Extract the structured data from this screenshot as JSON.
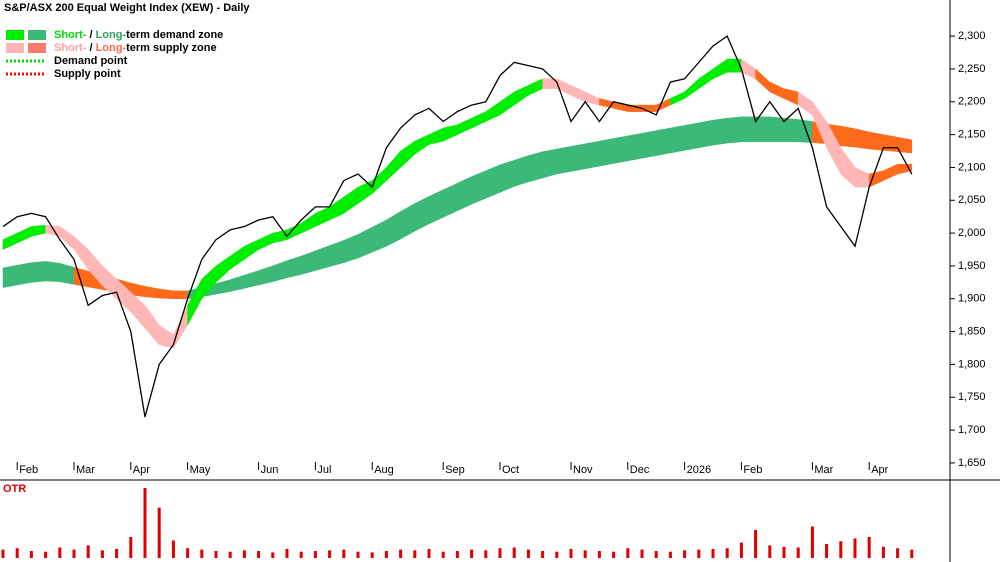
{
  "chart_data": {
    "type": "line",
    "title": "S&P/ASX 200 Equal Weight Index (XEW) - Daily",
    "categories": [
      null,
      "Feb",
      null,
      null,
      null,
      "Mar",
      null,
      null,
      null,
      "Apr",
      null,
      null,
      null,
      "May",
      null,
      null,
      null,
      null,
      "Jun",
      null,
      null,
      null,
      "Jul",
      null,
      null,
      null,
      "Aug",
      null,
      null,
      null,
      null,
      "Sep",
      null,
      null,
      null,
      "Oct",
      null,
      null,
      null,
      null,
      "Nov",
      null,
      null,
      null,
      "Dec",
      null,
      null,
      null,
      "2026",
      null,
      null,
      null,
      "Feb",
      null,
      null,
      null,
      null,
      "Mar",
      null,
      null,
      null,
      "Apr",
      null,
      null,
      null
    ],
    "series": [
      {
        "name": "XEW",
        "color": "#000000",
        "values": [
          2010,
          2025,
          2030,
          2025,
          1990,
          1960,
          1890,
          1905,
          1910,
          1850,
          1720,
          1800,
          1830,
          1900,
          1960,
          1990,
          2005,
          2010,
          2020,
          2025,
          1995,
          2020,
          2040,
          2040,
          2080,
          2090,
          2070,
          2130,
          2160,
          2180,
          2190,
          2170,
          2185,
          2195,
          2200,
          2240,
          2260,
          2255,
          2250,
          2230,
          2170,
          2200,
          2170,
          2200,
          2195,
          2190,
          2180,
          2230,
          2235,
          2260,
          2285,
          2300,
          2250,
          2170,
          2200,
          2170,
          2190,
          2130,
          2040,
          2010,
          1980,
          2070,
          2130,
          2130,
          2090
        ]
      }
    ],
    "bands": [
      {
        "upper": [
          1947,
          1951,
          1955,
          1957,
          1954,
          1948,
          1942,
          1936,
          1930,
          1924,
          1919,
          1915,
          1912,
          1912,
          1917,
          1923,
          1929,
          1936,
          1943,
          1950,
          1958,
          1965,
          1973,
          1981,
          1989,
          1998,
          2009,
          2020,
          2033,
          2045,
          2056,
          2066,
          2076,
          2086,
          2095,
          2104,
          2111,
          2118,
          2124,
          2128,
          2132,
          2136,
          2140,
          2144,
          2148,
          2152,
          2156,
          2160,
          2164,
          2168,
          2172,
          2175,
          2177,
          2177,
          2177,
          2175,
          2173,
          2170,
          2166,
          2163,
          2159,
          2154,
          2150,
          2146,
          2142
        ],
        "lower": [
          1917,
          1921,
          1925,
          1927,
          1926,
          1922,
          1918,
          1914,
          1910,
          1906,
          1903,
          1901,
          1900,
          1900,
          1903,
          1907,
          1911,
          1916,
          1921,
          1926,
          1932,
          1937,
          1943,
          1949,
          1955,
          1962,
          1971,
          1980,
          1991,
          2003,
          2014,
          2024,
          2034,
          2044,
          2053,
          2062,
          2071,
          2078,
          2084,
          2090,
          2094,
          2098,
          2102,
          2106,
          2110,
          2114,
          2118,
          2122,
          2126,
          2130,
          2134,
          2137,
          2139,
          2139,
          2139,
          2139,
          2139,
          2138,
          2136,
          2133,
          2131,
          2128,
          2126,
          2124,
          2122
        ],
        "colors": [
          "#3cb878",
          "#3cb878",
          "#3cb878",
          "#3cb878",
          "#3cb878",
          "#ff6a1a",
          "#ff6a1a",
          "#ff6a1a",
          "#ff6a1a",
          "#ff6a1a",
          "#ff6a1a",
          "#ff6a1a",
          "#ff6a1a",
          "#3cb878",
          "#3cb878",
          "#3cb878",
          "#3cb878",
          "#3cb878",
          "#3cb878",
          "#3cb878",
          "#3cb878",
          "#3cb878",
          "#3cb878",
          "#3cb878",
          "#3cb878",
          "#3cb878",
          "#3cb878",
          "#3cb878",
          "#3cb878",
          "#3cb878",
          "#3cb878",
          "#3cb878",
          "#3cb878",
          "#3cb878",
          "#3cb878",
          "#3cb878",
          "#3cb878",
          "#3cb878",
          "#3cb878",
          "#3cb878",
          "#3cb878",
          "#3cb878",
          "#3cb878",
          "#3cb878",
          "#3cb878",
          "#3cb878",
          "#3cb878",
          "#3cb878",
          "#3cb878",
          "#3cb878",
          "#3cb878",
          "#3cb878",
          "#3cb878",
          "#3cb878",
          "#3cb878",
          "#3cb878",
          "#3cb878",
          "#ff6a1a",
          "#ff6a1a",
          "#ff6a1a",
          "#ff6a1a",
          "#ff6a1a",
          "#ff6a1a",
          "#ff6a1a",
          "#ff6a1a"
        ]
      },
      {
        "upper": [
          1990,
          2000,
          2010,
          2012,
          2010,
          1995,
          1975,
          1950,
          1930,
          1910,
          1890,
          1860,
          1845,
          1890,
          1930,
          1950,
          1965,
          1980,
          1990,
          2000,
          2005,
          2015,
          2030,
          2040,
          2055,
          2070,
          2080,
          2100,
          2125,
          2140,
          2150,
          2160,
          2165,
          2175,
          2185,
          2200,
          2215,
          2225,
          2235,
          2235,
          2225,
          2215,
          2205,
          2200,
          2195,
          2195,
          2195,
          2205,
          2215,
          2235,
          2250,
          2265,
          2265,
          2250,
          2230,
          2220,
          2215,
          2200,
          2170,
          2130,
          2100,
          2090,
          2095,
          2105,
          2105
        ],
        "lower": [
          1975,
          1985,
          1995,
          2000,
          1995,
          1975,
          1945,
          1920,
          1900,
          1880,
          1855,
          1830,
          1825,
          1860,
          1900,
          1925,
          1945,
          1960,
          1975,
          1985,
          1990,
          2000,
          2010,
          2020,
          2030,
          2045,
          2060,
          2080,
          2100,
          2120,
          2135,
          2140,
          2150,
          2160,
          2170,
          2180,
          2195,
          2210,
          2220,
          2220,
          2210,
          2200,
          2195,
          2190,
          2185,
          2185,
          2185,
          2195,
          2205,
          2220,
          2235,
          2245,
          2245,
          2235,
          2215,
          2205,
          2195,
          2180,
          2130,
          2090,
          2070,
          2070,
          2080,
          2090,
          2095
        ],
        "colors": [
          "#00ee00",
          "#00ee00",
          "#00ee00",
          "#ffb6b6",
          "#ffb6b6",
          "#ffb6b6",
          "#ffb6b6",
          "#ffb6b6",
          "#ffb6b6",
          "#ffb6b6",
          "#ffb6b6",
          "#ffb6b6",
          "#ffb6b6",
          "#00ee00",
          "#00ee00",
          "#00ee00",
          "#00ee00",
          "#00ee00",
          "#00ee00",
          "#00ee00",
          "#00ee00",
          "#00ee00",
          "#00ee00",
          "#00ee00",
          "#00ee00",
          "#00ee00",
          "#00ee00",
          "#00ee00",
          "#00ee00",
          "#00ee00",
          "#00ee00",
          "#00ee00",
          "#00ee00",
          "#00ee00",
          "#00ee00",
          "#00ee00",
          "#00ee00",
          "#00ee00",
          "#ffb6b6",
          "#ffb6b6",
          "#ffb6b6",
          "#ffb6b6",
          "#ff6a1a",
          "#ff6a1a",
          "#ff6a1a",
          "#ff6a1a",
          "#ff6a1a",
          "#00ee00",
          "#00ee00",
          "#00ee00",
          "#00ee00",
          "#00ee00",
          "#ffb6b6",
          "#ff6a1a",
          "#ff6a1a",
          "#ff6a1a",
          "#ffb6b6",
          "#ffb6b6",
          "#ffb6b6",
          "#ffb6b6",
          "#ffb6b6",
          "#ff6a1a",
          "#ff6a1a",
          "#ff6a1a",
          "#ff6a1a"
        ]
      }
    ],
    "ylim": [
      1624,
      2355
    ],
    "yticks": [
      {
        "value": 1650,
        "label": "1,650"
      },
      {
        "value": 1700,
        "label": "1,700"
      },
      {
        "value": 1750,
        "label": "1,750"
      },
      {
        "value": 1800,
        "label": "1,800"
      },
      {
        "value": 1850,
        "label": "1,850"
      },
      {
        "value": 1900,
        "label": "1,900"
      },
      {
        "value": 1950,
        "label": "1,950"
      },
      {
        "value": 2000,
        "label": "2,000"
      },
      {
        "value": 2050,
        "label": "2,050"
      },
      {
        "value": 2100,
        "label": "2,100"
      },
      {
        "value": 2150,
        "label": "2,150"
      },
      {
        "value": 2200,
        "label": "2,200"
      },
      {
        "value": 2250,
        "label": "2,250"
      },
      {
        "value": 2300,
        "label": "2,300"
      }
    ],
    "legend": [
      {
        "swatches": [
          "#00ee00",
          "#3cb878"
        ],
        "parts": [
          {
            "text": "Short-",
            "color": "#00dd00"
          },
          {
            "text": " / ",
            "color": "#000000"
          },
          {
            "text": "Long-",
            "color": "#2e9e5e"
          },
          {
            "text": "term demand zone",
            "color": "#000000"
          }
        ]
      },
      {
        "swatches": [
          "#ffb6b6",
          "#ff7a6a"
        ],
        "parts": [
          {
            "text": "Short-",
            "color": "#ff9f9f"
          },
          {
            "text": " / ",
            "color": "#000000"
          },
          {
            "text": "Long-",
            "color": "#ff6a4a"
          },
          {
            "text": "term supply zone",
            "color": "#000000"
          }
        ]
      },
      {
        "line": "#00dd00",
        "parts": [
          {
            "text": "Demand point",
            "color": "#000000"
          }
        ]
      },
      {
        "line": "#ff0000",
        "parts": [
          {
            "text": "Supply point",
            "color": "#000000"
          }
        ]
      }
    ],
    "otr": {
      "label": "OTR",
      "color": "#e00000",
      "ylim": [
        0,
        100
      ],
      "values": [
        12,
        14,
        10,
        9,
        15,
        12,
        18,
        11,
        13,
        30,
        100,
        72,
        25,
        14,
        12,
        10,
        9,
        11,
        10,
        8,
        13,
        9,
        10,
        11,
        12,
        9,
        8,
        10,
        12,
        11,
        13,
        9,
        10,
        12,
        11,
        14,
        15,
        12,
        10,
        9,
        13,
        11,
        10,
        9,
        14,
        12,
        10,
        9,
        11,
        12,
        13,
        14,
        22,
        40,
        18,
        16,
        15,
        45,
        20,
        24,
        28,
        30,
        16,
        14,
        12
      ]
    }
  }
}
